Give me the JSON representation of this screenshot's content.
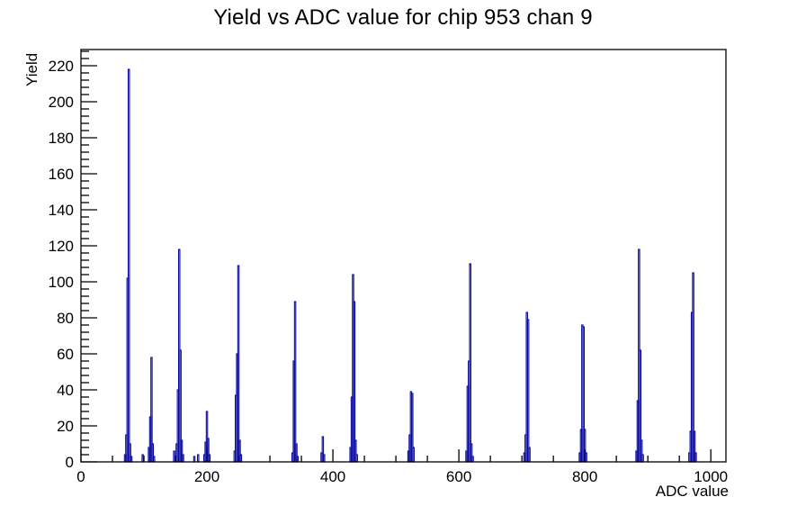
{
  "chart_data": {
    "type": "bar",
    "title": "Yield vs ADC value for chip 953 chan 9",
    "xlabel": "ADC value",
    "ylabel": "Yield",
    "xlim": [
      0,
      1024
    ],
    "ylim": [
      0,
      229
    ],
    "x_major_ticks": [
      0,
      200,
      400,
      600,
      800,
      1000
    ],
    "x_minor_step": 50,
    "y_major_tick_step": 20,
    "y_major_tick_max": 220,
    "y_minor_step": 4,
    "grid": false,
    "legend": false,
    "line_color": "#0a0aa0",
    "frame_color": "#000000",
    "background": "#ffffff",
    "bin_width_adc": 2,
    "peaks": [
      {
        "adc": 76,
        "yield": 218
      },
      {
        "adc": 112,
        "yield": 58
      },
      {
        "adc": 156,
        "yield": 118
      },
      {
        "adc": 200,
        "yield": 28
      },
      {
        "adc": 250,
        "yield": 109
      },
      {
        "adc": 340,
        "yield": 89
      },
      {
        "adc": 384,
        "yield": 14
      },
      {
        "adc": 432,
        "yield": 104
      },
      {
        "adc": 524,
        "yield": 39
      },
      {
        "adc": 618,
        "yield": 110
      },
      {
        "adc": 708,
        "yield": 83
      },
      {
        "adc": 796,
        "yield": 76
      },
      {
        "adc": 886,
        "yield": 118
      },
      {
        "adc": 972,
        "yield": 105
      }
    ],
    "bins": [
      [
        70,
        4
      ],
      [
        72,
        15
      ],
      [
        74,
        102
      ],
      [
        76,
        218
      ],
      [
        78,
        10
      ],
      [
        80,
        3
      ],
      [
        98,
        4
      ],
      [
        108,
        8
      ],
      [
        110,
        25
      ],
      [
        112,
        58
      ],
      [
        114,
        10
      ],
      [
        116,
        3
      ],
      [
        148,
        6
      ],
      [
        152,
        10
      ],
      [
        154,
        40
      ],
      [
        156,
        118
      ],
      [
        158,
        62
      ],
      [
        160,
        12
      ],
      [
        162,
        4
      ],
      [
        180,
        3
      ],
      [
        186,
        4
      ],
      [
        196,
        4
      ],
      [
        198,
        11
      ],
      [
        200,
        28
      ],
      [
        202,
        13
      ],
      [
        204,
        4
      ],
      [
        244,
        6
      ],
      [
        246,
        37
      ],
      [
        248,
        60
      ],
      [
        250,
        109
      ],
      [
        252,
        12
      ],
      [
        254,
        4
      ],
      [
        336,
        5
      ],
      [
        338,
        56
      ],
      [
        340,
        89
      ],
      [
        342,
        10
      ],
      [
        344,
        3
      ],
      [
        382,
        5
      ],
      [
        384,
        14
      ],
      [
        386,
        4
      ],
      [
        428,
        8
      ],
      [
        430,
        36
      ],
      [
        432,
        104
      ],
      [
        434,
        89
      ],
      [
        436,
        12
      ],
      [
        438,
        4
      ],
      [
        520,
        6
      ],
      [
        522,
        15
      ],
      [
        524,
        39
      ],
      [
        526,
        38
      ],
      [
        528,
        8
      ],
      [
        612,
        6
      ],
      [
        614,
        42
      ],
      [
        616,
        56
      ],
      [
        618,
        110
      ],
      [
        620,
        10
      ],
      [
        622,
        3
      ],
      [
        704,
        5
      ],
      [
        706,
        15
      ],
      [
        708,
        83
      ],
      [
        710,
        79
      ],
      [
        712,
        8
      ],
      [
        792,
        5
      ],
      [
        794,
        18
      ],
      [
        796,
        76
      ],
      [
        798,
        75
      ],
      [
        800,
        18
      ],
      [
        802,
        5
      ],
      [
        882,
        6
      ],
      [
        884,
        34
      ],
      [
        886,
        118
      ],
      [
        888,
        62
      ],
      [
        890,
        12
      ],
      [
        892,
        4
      ],
      [
        966,
        5
      ],
      [
        968,
        17
      ],
      [
        970,
        83
      ],
      [
        972,
        105
      ],
      [
        974,
        17
      ],
      [
        976,
        5
      ]
    ]
  }
}
